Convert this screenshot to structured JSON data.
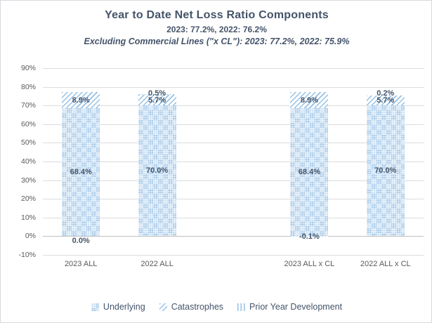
{
  "header": {
    "title": "Year to Date Net Loss Ratio Components",
    "subtitle": "2023: 77.2%, 2022: 76.2%",
    "subtitle2": "Excluding Commercial Lines (\"x CL\"): 2023: 77.2%, 2022: 75.9%"
  },
  "chart_data": {
    "type": "bar",
    "stacked": true,
    "title": "Year to Date Net Loss Ratio Components",
    "categories": [
      "2023 ALL",
      "2022 ALL",
      "",
      "2023 ALL x CL",
      "2022 ALL x CL"
    ],
    "series": [
      {
        "name": "Underlying",
        "pattern": "checker",
        "values": [
          68.4,
          70.0,
          null,
          68.4,
          70.0
        ]
      },
      {
        "name": "Catastrophes",
        "pattern": "diagonal",
        "values": [
          8.9,
          5.7,
          null,
          8.9,
          5.7
        ]
      },
      {
        "name": "Prior Year Development",
        "pattern": "vertical",
        "values": [
          0.0,
          0.5,
          null,
          -0.1,
          0.2
        ]
      }
    ],
    "ylim": [
      -10,
      90
    ],
    "ytick_step": 10,
    "ytick_labels": [
      "90%",
      "80%",
      "70%",
      "60%",
      "50%",
      "40%",
      "30%",
      "20%",
      "10%",
      "0%",
      "-10%"
    ],
    "grid": true,
    "legend_position": "bottom",
    "label_format": "one_decimal_percent",
    "colors": {
      "pattern_blue": "#94c0e4",
      "underlying_fill": "#bdd7ee",
      "data_label": "#44546a",
      "axis_label": "#595959",
      "gridline": "#dcdcdc",
      "zero_line": "#c0c0c0",
      "title": "#44546a"
    }
  },
  "legend": {
    "items": [
      {
        "label": "Underlying",
        "pattern": "checker"
      },
      {
        "label": "Catastrophes",
        "pattern": "diagonal"
      },
      {
        "label": "Prior Year Development",
        "pattern": "vertical"
      }
    ]
  }
}
